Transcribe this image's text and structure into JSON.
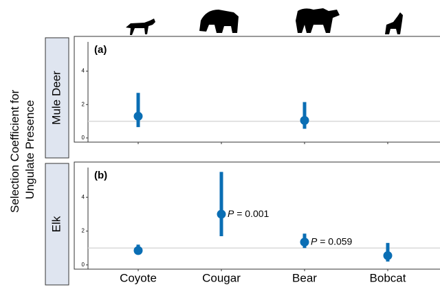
{
  "chart_data": {
    "type": "pointrange",
    "ylabel": [
      "Selection Coefficient for",
      "Ungulate Presence"
    ],
    "categories": [
      "Coyote",
      "Cougar",
      "Bear",
      "Bobcat"
    ],
    "ylim": [
      -0.25,
      6
    ],
    "yticks": [
      0,
      2,
      4
    ],
    "reference_line": 1,
    "color": "#0a6eb4",
    "panels": [
      {
        "label": "(a)",
        "strip": "Mule Deer",
        "values": [
          1.3,
          null,
          1.05,
          null
        ],
        "lower": [
          0.65,
          null,
          0.55,
          null
        ],
        "upper": [
          2.7,
          null,
          2.15,
          null
        ]
      },
      {
        "label": "(b)",
        "strip": "Elk",
        "values": [
          0.85,
          3.0,
          1.35,
          0.55
        ],
        "lower": [
          0.65,
          1.7,
          1.0,
          0.2
        ],
        "upper": [
          1.2,
          5.5,
          1.85,
          1.3
        ],
        "annotations": [
          {
            "category": "Cougar",
            "symbol": "P",
            "text": "= 0.001"
          },
          {
            "category": "Bear",
            "symbol": "P",
            "text": "= 0.059"
          }
        ]
      }
    ]
  }
}
